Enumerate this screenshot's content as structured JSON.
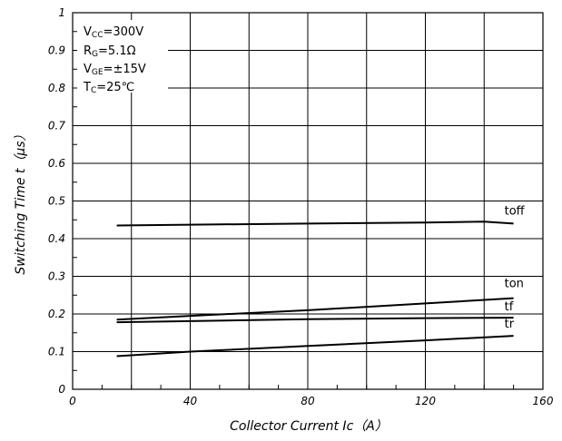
{
  "chart_data": {
    "type": "line",
    "xlabel": "Collector Current Ic（A）",
    "ylabel": "Switching Time t（μs）",
    "xlim": [
      0,
      160
    ],
    "ylim": [
      0,
      1
    ],
    "x_ticks": [
      0,
      40,
      80,
      120,
      160
    ],
    "y_ticks": [
      0,
      0.1,
      0.2,
      0.3,
      0.4,
      0.5,
      0.6,
      0.7,
      0.8,
      0.9,
      1
    ],
    "grid": true,
    "conditions": {
      "vcc": "=300V",
      "rg": "=5.1Ω",
      "vge": "=±15V",
      "tc": "=25℃"
    },
    "series": [
      {
        "name": "toff",
        "x": [
          15,
          40,
          80,
          120,
          140,
          150
        ],
        "y": [
          0.435,
          0.437,
          0.44,
          0.443,
          0.445,
          0.44
        ]
      },
      {
        "name": "ton",
        "x": [
          15,
          40,
          80,
          120,
          150
        ],
        "y": [
          0.185,
          0.195,
          0.21,
          0.228,
          0.242
        ]
      },
      {
        "name": "tf",
        "x": [
          15,
          40,
          80,
          120,
          150
        ],
        "y": [
          0.178,
          0.181,
          0.186,
          0.189,
          0.19
        ]
      },
      {
        "name": "tr",
        "x": [
          15,
          40,
          80,
          120,
          150
        ],
        "y": [
          0.088,
          0.1,
          0.115,
          0.13,
          0.142
        ]
      }
    ]
  }
}
